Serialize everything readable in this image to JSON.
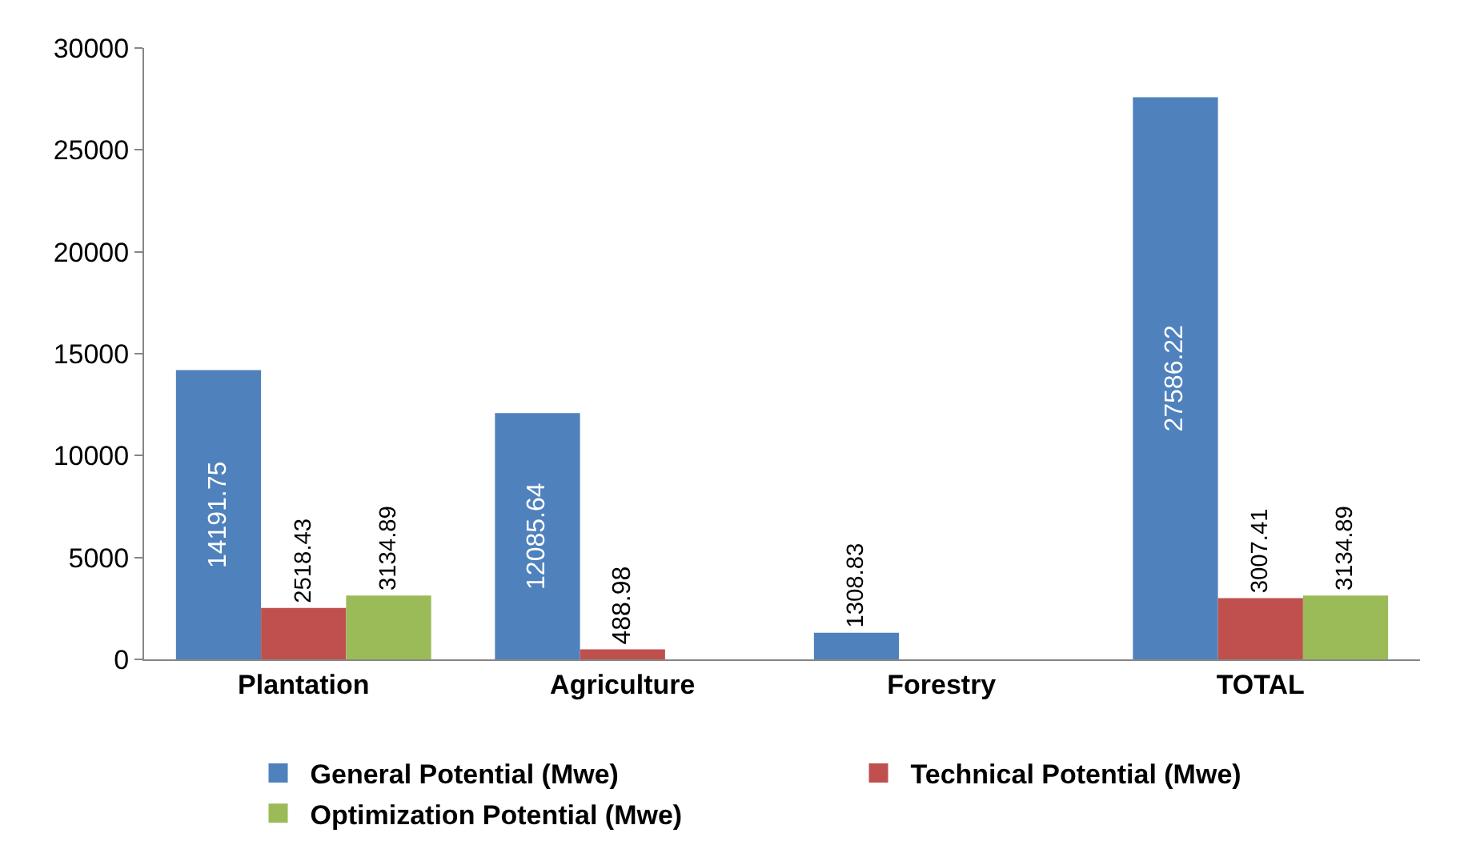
{
  "chart_data": {
    "type": "bar",
    "categories": [
      "Plantation",
      "Agriculture",
      "Forestry",
      "TOTAL"
    ],
    "series": [
      {
        "name": "General Potential (Mwe)",
        "color": "#4f81bd",
        "values": [
          14191.75,
          12085.64,
          1308.83,
          27586.22
        ]
      },
      {
        "name": "Technical Potential (Mwe)",
        "color": "#c0504d",
        "values": [
          2518.43,
          488.98,
          null,
          3007.41
        ]
      },
      {
        "name": "Optimization Potential (Mwe)",
        "color": "#9bbb59",
        "values": [
          3134.89,
          null,
          null,
          3134.89
        ]
      }
    ],
    "ylim": [
      0,
      30000
    ],
    "yticks": [
      0,
      5000,
      10000,
      15000,
      20000,
      25000,
      30000
    ],
    "data_labels": true,
    "grid": false,
    "legend": "bottom"
  }
}
